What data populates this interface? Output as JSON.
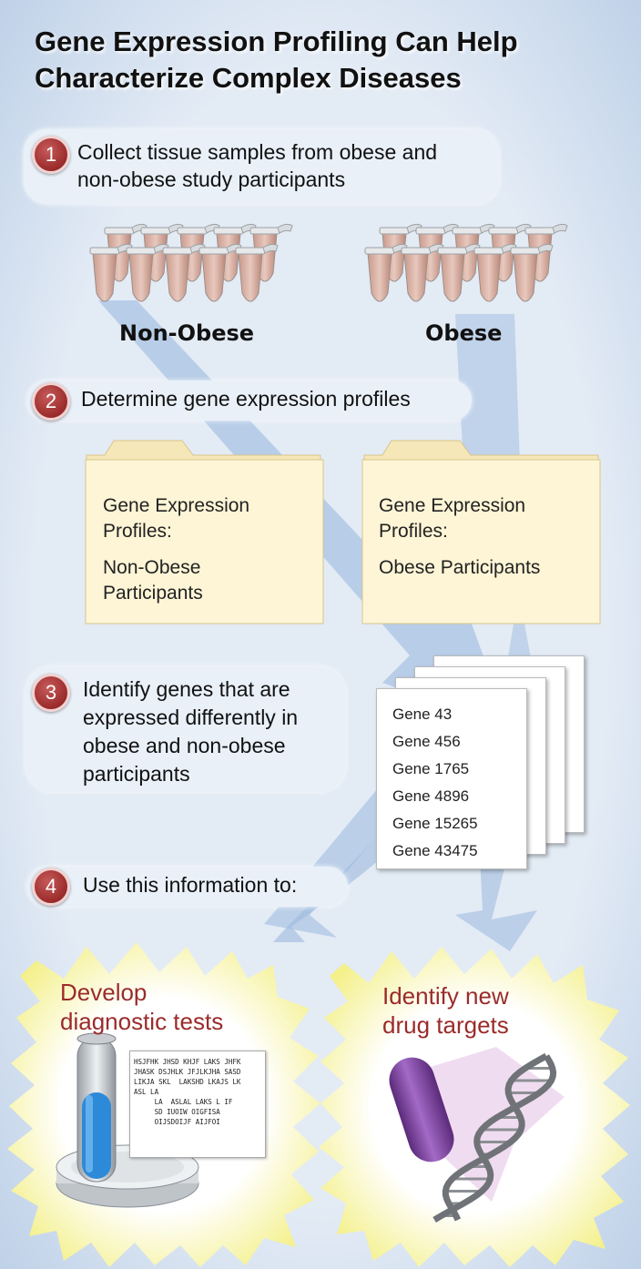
{
  "title": {
    "line1": "Gene Expression Profiling Can Help",
    "line2": "Characterize Complex Diseases"
  },
  "steps": [
    {
      "number": "1",
      "line1": "Collect tissue samples from obese and",
      "line2": "non-obese study participants"
    },
    {
      "number": "2",
      "line1": "Determine gene expression profiles"
    },
    {
      "number": "3",
      "line1": "Identify genes that are",
      "line2": "expressed differently in",
      "line3": "obese and non-obese",
      "line4": "participants"
    },
    {
      "number": "4",
      "line1": "Use this information to:"
    }
  ],
  "groups": {
    "left": "Non-Obese",
    "right": "Obese"
  },
  "folders": {
    "left": {
      "line1": "Gene Expression",
      "line2": "Profiles:",
      "line3": "Non-Obese",
      "line4": "Participants"
    },
    "right": {
      "line1": "Gene Expression",
      "line2": "Profiles:",
      "line3": "Obese Participants"
    }
  },
  "genes": [
    "Gene 43",
    "Gene 456",
    "Gene 1765",
    "Gene 4896",
    "Gene 15265",
    "Gene 43475"
  ],
  "outcomes": {
    "left": {
      "line1": "Develop",
      "line2": "diagnostic tests"
    },
    "right": {
      "line1": "Identify new",
      "line2": "drug targets"
    }
  },
  "report_text": {
    "line1": "HSJFHK JHSD KHJF LAKS JHFK",
    "line2": "JHASK DSJHLK JFJLKJHA SASD",
    "line3": "LIKJA SKL  LAKSHD LKAJS LK",
    "line4": "ASL LA",
    "line5": "     LA  ASLAL LAKS L IF",
    "line6": "     SD IUOIW OIGFISA",
    "line7": "     OIJSDOIJF AIJFOI"
  },
  "colors": {
    "background": "#dbe6f2",
    "step_badge": "#9b2b2b",
    "outcome_title": "#9b2b2b",
    "folder": "#fdf5d6",
    "arrow": "#a9c3e3"
  },
  "icons": [
    "tube-icon",
    "folder-icon",
    "paper-icon",
    "test-tube-icon",
    "petri-dish-icon",
    "pill-icon",
    "dna-icon"
  ]
}
